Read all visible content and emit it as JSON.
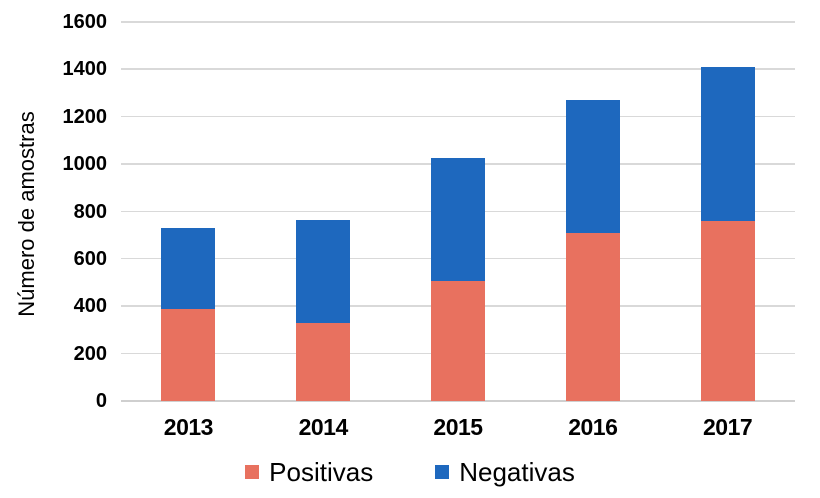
{
  "chart_data": {
    "type": "bar",
    "stacked": true,
    "title": "",
    "xlabel": "",
    "ylabel": "Número de amostras",
    "categories": [
      "2013",
      "2014",
      "2015",
      "2016",
      "2017"
    ],
    "series": [
      {
        "name": "Positivas",
        "color": "#e8715f",
        "values": [
          390,
          330,
          505,
          710,
          760
        ]
      },
      {
        "name": "Negativas",
        "color": "#1e68be",
        "values": [
          340,
          435,
          520,
          560,
          650
        ]
      }
    ],
    "totals": [
      730,
      765,
      1025,
      1270,
      1410
    ],
    "ylim": [
      0,
      1600
    ],
    "ytick_step": 200,
    "yticks": [
      0,
      200,
      400,
      600,
      800,
      1000,
      1200,
      1400,
      1600
    ],
    "grid": "horizontal",
    "legend_position": "bottom"
  },
  "colors": {
    "background": "#ffffff",
    "gridline": "#d9d9d9",
    "axis_line": "#cfcfcf",
    "text": "#000000"
  }
}
